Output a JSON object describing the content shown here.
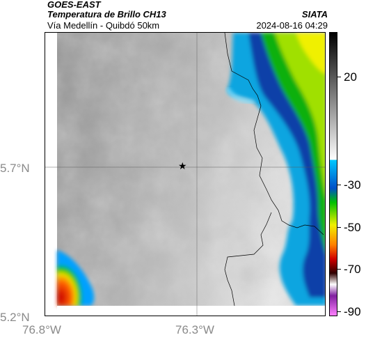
{
  "header": {
    "satellite": "GOES-EAST",
    "product": "Temperatura de Brillo CH13",
    "route": "Vía Medellín - Quibdó 50km",
    "organization": "SIATA",
    "timestamp": "2024-08-16 04:29"
  },
  "map": {
    "lat_labels": [
      "5.7°N",
      "5.2°N"
    ],
    "lon_labels": [
      "76.8°W",
      "76.3°W"
    ],
    "marker": "star-marker"
  },
  "colorbar": {
    "ticks": [
      "20",
      "-30",
      "-50",
      "-70",
      "-90"
    ],
    "colors": [
      "#000000",
      "#ffffff",
      "#00c8ff",
      "#0050c8",
      "#00c000",
      "#f0f000",
      "#ff8000",
      "#d00000",
      "#300000",
      "#8020a0",
      "#ff80ff"
    ]
  }
}
